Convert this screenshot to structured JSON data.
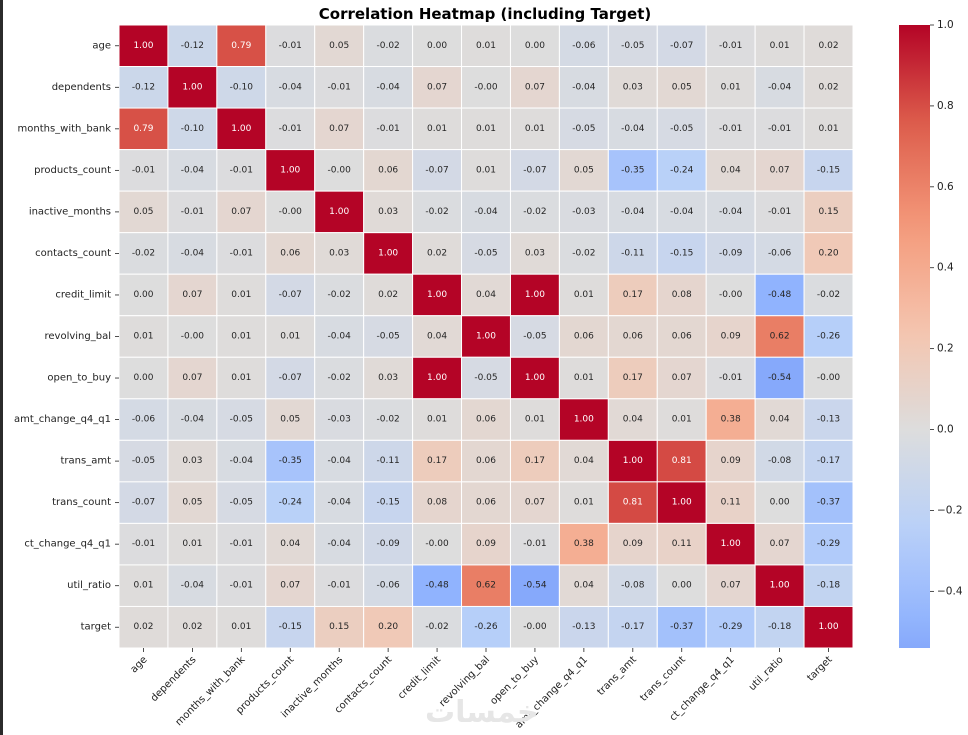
{
  "chart_data": {
    "type": "heatmap",
    "title": "Correlation Heatmap (including Target)",
    "xlabel": "",
    "ylabel": "",
    "colormap": "coolwarm",
    "center": 0,
    "vrange": [
      -0.54,
      1.0
    ],
    "labels": [
      "age",
      "dependents",
      "months_with_bank",
      "products_count",
      "inactive_months",
      "contacts_count",
      "credit_limit",
      "revolving_bal",
      "open_to_buy",
      "amt_change_q4_q1",
      "trans_amt",
      "trans_count",
      "ct_change_q4_q1",
      "util_ratio",
      "target"
    ],
    "matrix": [
      [
        1.0,
        -0.12,
        0.79,
        -0.01,
        0.05,
        -0.02,
        0.0,
        0.01,
        0.0,
        -0.06,
        -0.05,
        -0.07,
        -0.01,
        0.01,
        0.02
      ],
      [
        -0.12,
        1.0,
        -0.1,
        -0.04,
        -0.01,
        -0.04,
        0.07,
        -0.0,
        0.07,
        -0.04,
        0.03,
        0.05,
        0.01,
        -0.04,
        0.02
      ],
      [
        0.79,
        -0.1,
        1.0,
        -0.01,
        0.07,
        -0.01,
        0.01,
        0.01,
        0.01,
        -0.05,
        -0.04,
        -0.05,
        -0.01,
        -0.01,
        0.01
      ],
      [
        -0.01,
        -0.04,
        -0.01,
        1.0,
        -0.0,
        0.06,
        -0.07,
        0.01,
        -0.07,
        0.05,
        -0.35,
        -0.24,
        0.04,
        0.07,
        -0.15
      ],
      [
        0.05,
        -0.01,
        0.07,
        -0.0,
        1.0,
        0.03,
        -0.02,
        -0.04,
        -0.02,
        -0.03,
        -0.04,
        -0.04,
        -0.04,
        -0.01,
        0.15
      ],
      [
        -0.02,
        -0.04,
        -0.01,
        0.06,
        0.03,
        1.0,
        0.02,
        -0.05,
        0.03,
        -0.02,
        -0.11,
        -0.15,
        -0.09,
        -0.06,
        0.2
      ],
      [
        0.0,
        0.07,
        0.01,
        -0.07,
        -0.02,
        0.02,
        1.0,
        0.04,
        1.0,
        0.01,
        0.17,
        0.08,
        -0.0,
        -0.48,
        -0.02
      ],
      [
        0.01,
        -0.0,
        0.01,
        0.01,
        -0.04,
        -0.05,
        0.04,
        1.0,
        -0.05,
        0.06,
        0.06,
        0.06,
        0.09,
        0.62,
        -0.26
      ],
      [
        0.0,
        0.07,
        0.01,
        -0.07,
        -0.02,
        0.03,
        1.0,
        -0.05,
        1.0,
        0.01,
        0.17,
        0.07,
        -0.01,
        -0.54,
        -0.0
      ],
      [
        -0.06,
        -0.04,
        -0.05,
        0.05,
        -0.03,
        -0.02,
        0.01,
        0.06,
        0.01,
        1.0,
        0.04,
        0.01,
        0.38,
        0.04,
        -0.13
      ],
      [
        -0.05,
        0.03,
        -0.04,
        -0.35,
        -0.04,
        -0.11,
        0.17,
        0.06,
        0.17,
        0.04,
        1.0,
        0.81,
        0.09,
        -0.08,
        -0.17
      ],
      [
        -0.07,
        0.05,
        -0.05,
        -0.24,
        -0.04,
        -0.15,
        0.08,
        0.06,
        0.07,
        0.01,
        0.81,
        1.0,
        0.11,
        0.0,
        -0.37
      ],
      [
        -0.01,
        0.01,
        -0.01,
        0.04,
        -0.04,
        -0.09,
        -0.0,
        0.09,
        -0.01,
        0.38,
        0.09,
        0.11,
        1.0,
        0.07,
        -0.29
      ],
      [
        0.01,
        -0.04,
        -0.01,
        0.07,
        -0.01,
        -0.06,
        -0.48,
        0.62,
        -0.54,
        0.04,
        -0.08,
        0.0,
        0.07,
        1.0,
        -0.18
      ],
      [
        0.02,
        0.02,
        0.01,
        -0.15,
        0.15,
        0.2,
        -0.02,
        -0.26,
        -0.0,
        -0.13,
        -0.17,
        -0.37,
        -0.29,
        -0.18,
        1.0
      ]
    ],
    "matrix_labels_text": [
      [
        "1.00",
        "-0.12",
        "0.79",
        "-0.01",
        "0.05",
        "-0.02",
        "0.00",
        "0.01",
        "0.00",
        "-0.06",
        "-0.05",
        "-0.07",
        "-0.01",
        "0.01",
        "0.02"
      ],
      [
        "-0.12",
        "1.00",
        "-0.10",
        "-0.04",
        "-0.01",
        "-0.04",
        "0.07",
        "-0.00",
        "0.07",
        "-0.04",
        "0.03",
        "0.05",
        "0.01",
        "-0.04",
        "0.02"
      ],
      [
        "0.79",
        "-0.10",
        "1.00",
        "-0.01",
        "0.07",
        "-0.01",
        "0.01",
        "0.01",
        "0.01",
        "-0.05",
        "-0.04",
        "-0.05",
        "-0.01",
        "-0.01",
        "0.01"
      ],
      [
        "-0.01",
        "-0.04",
        "-0.01",
        "1.00",
        "-0.00",
        "0.06",
        "-0.07",
        "0.01",
        "-0.07",
        "0.05",
        "-0.35",
        "-0.24",
        "0.04",
        "0.07",
        "-0.15"
      ],
      [
        "0.05",
        "-0.01",
        "0.07",
        "-0.00",
        "1.00",
        "0.03",
        "-0.02",
        "-0.04",
        "-0.02",
        "-0.03",
        "-0.04",
        "-0.04",
        "-0.04",
        "-0.01",
        "0.15"
      ],
      [
        "-0.02",
        "-0.04",
        "-0.01",
        "0.06",
        "0.03",
        "1.00",
        "0.02",
        "-0.05",
        "0.03",
        "-0.02",
        "-0.11",
        "-0.15",
        "-0.09",
        "-0.06",
        "0.20"
      ],
      [
        "0.00",
        "0.07",
        "0.01",
        "-0.07",
        "-0.02",
        "0.02",
        "1.00",
        "0.04",
        "1.00",
        "0.01",
        "0.17",
        "0.08",
        "-0.00",
        "-0.48",
        "-0.02"
      ],
      [
        "0.01",
        "-0.00",
        "0.01",
        "0.01",
        "-0.04",
        "-0.05",
        "0.04",
        "1.00",
        "-0.05",
        "0.06",
        "0.06",
        "0.06",
        "0.09",
        "0.62",
        "-0.26"
      ],
      [
        "0.00",
        "0.07",
        "0.01",
        "-0.07",
        "-0.02",
        "0.03",
        "1.00",
        "-0.05",
        "1.00",
        "0.01",
        "0.17",
        "0.07",
        "-0.01",
        "-0.54",
        "-0.00"
      ],
      [
        "-0.06",
        "-0.04",
        "-0.05",
        "0.05",
        "-0.03",
        "-0.02",
        "0.01",
        "0.06",
        "0.01",
        "1.00",
        "0.04",
        "0.01",
        "0.38",
        "0.04",
        "-0.13"
      ],
      [
        "-0.05",
        "0.03",
        "-0.04",
        "-0.35",
        "-0.04",
        "-0.11",
        "0.17",
        "0.06",
        "0.17",
        "0.04",
        "1.00",
        "0.81",
        "0.09",
        "-0.08",
        "-0.17"
      ],
      [
        "-0.07",
        "0.05",
        "-0.05",
        "-0.24",
        "-0.04",
        "-0.15",
        "0.08",
        "0.06",
        "0.07",
        "0.01",
        "0.81",
        "1.00",
        "0.11",
        "0.00",
        "-0.37"
      ],
      [
        "-0.01",
        "0.01",
        "-0.01",
        "0.04",
        "-0.04",
        "-0.09",
        "-0.00",
        "0.09",
        "-0.01",
        "0.38",
        "0.09",
        "0.11",
        "1.00",
        "0.07",
        "-0.29"
      ],
      [
        "0.01",
        "-0.04",
        "-0.01",
        "0.07",
        "-0.01",
        "-0.06",
        "-0.48",
        "0.62",
        "-0.54",
        "0.04",
        "-0.08",
        "0.00",
        "0.07",
        "1.00",
        "-0.18"
      ],
      [
        "0.02",
        "0.02",
        "0.01",
        "-0.15",
        "0.15",
        "0.20",
        "-0.02",
        "-0.26",
        "-0.00",
        "-0.13",
        "-0.17",
        "-0.37",
        "-0.29",
        "-0.18",
        "1.00"
      ]
    ],
    "colorbar_ticks": [
      1.0,
      0.8,
      0.6,
      0.4,
      0.2,
      0.0,
      -0.2,
      -0.4
    ],
    "colorbar_tick_labels": [
      "1.0",
      "0.8",
      "0.6",
      "0.4",
      "0.2",
      "0.0",
      "−0.2",
      "−0.4"
    ],
    "grid": false,
    "legend": "colorbar-right"
  },
  "watermark": {
    "text": "خمسات"
  }
}
